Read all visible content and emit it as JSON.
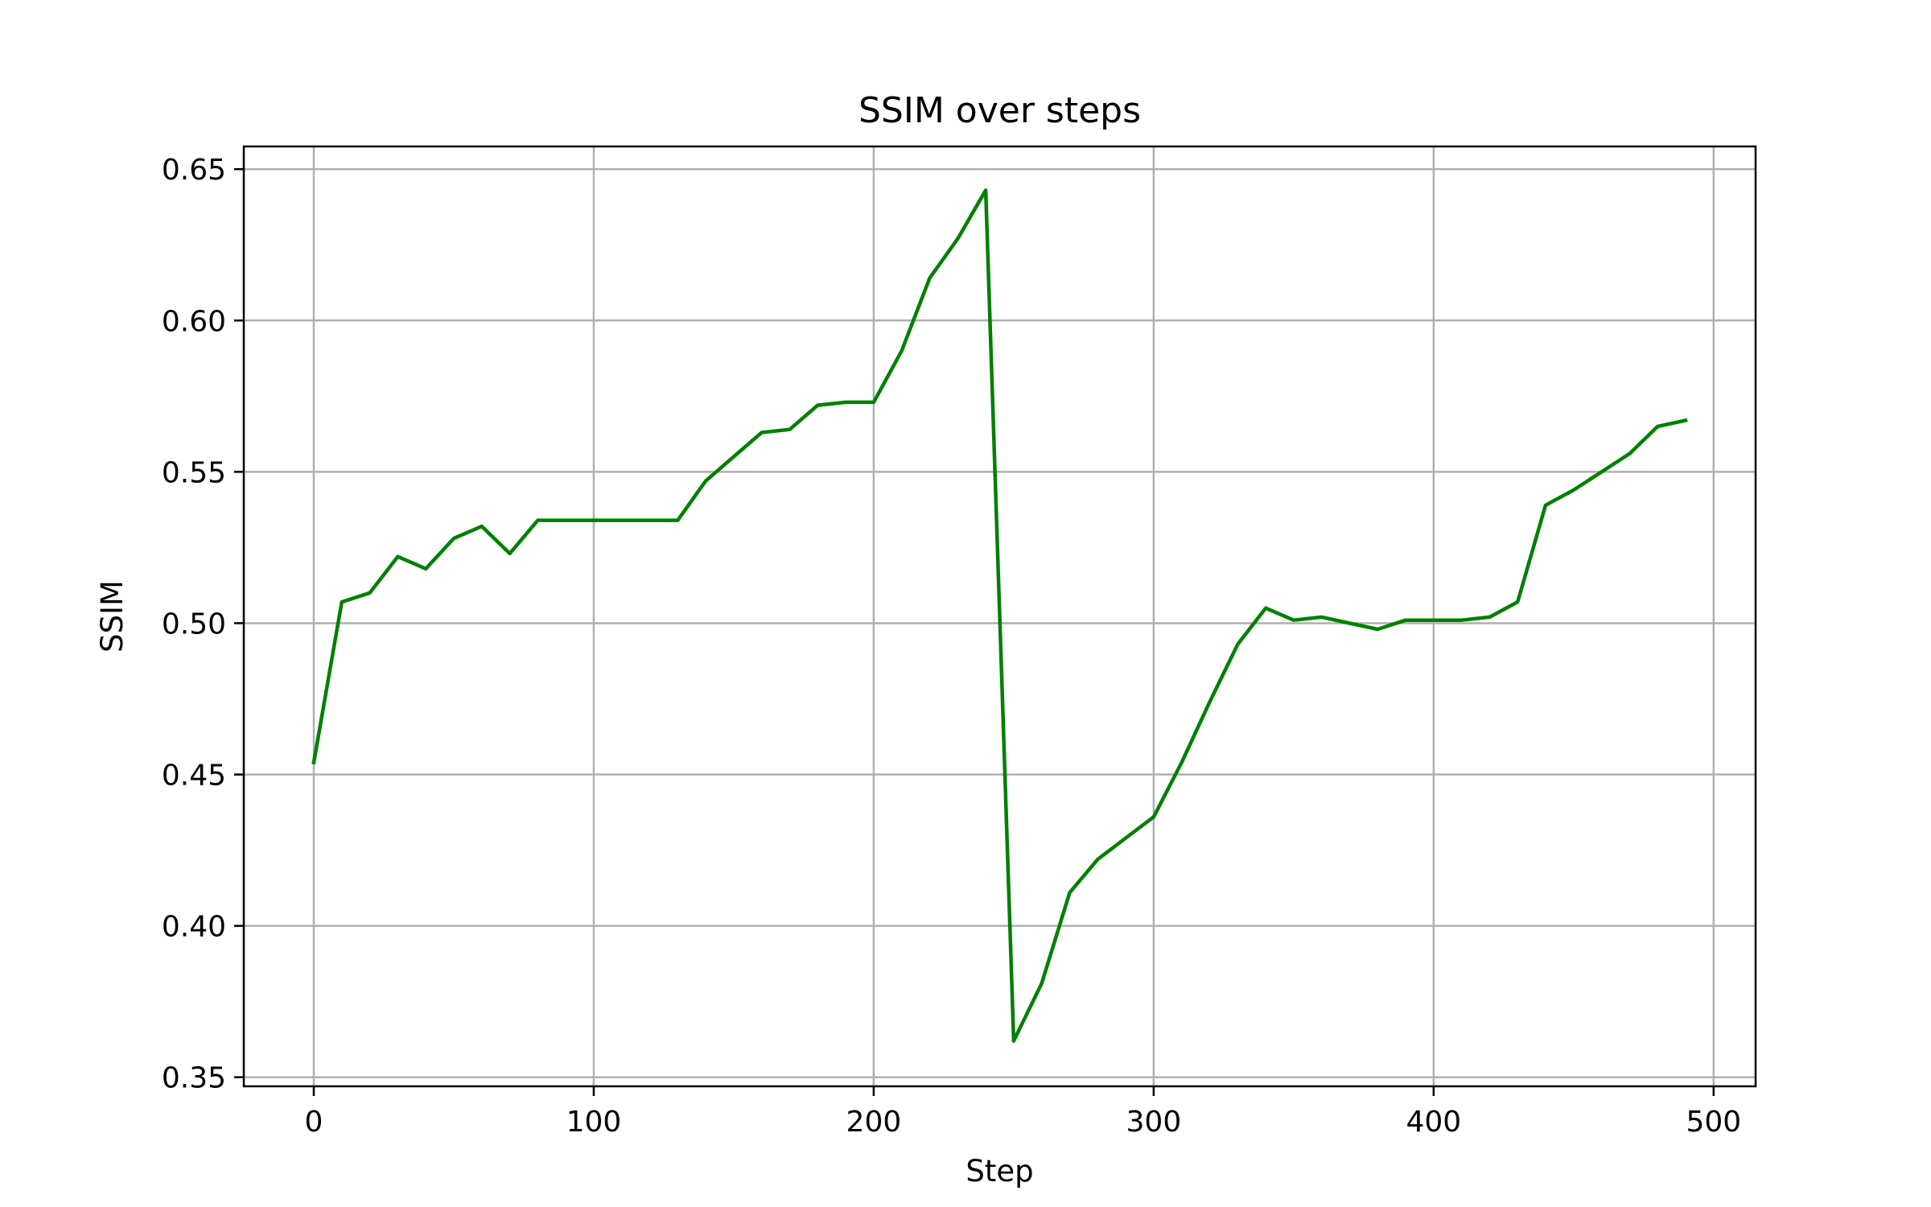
{
  "chart_data": {
    "type": "line",
    "title": "SSIM over steps",
    "xlabel": "Step",
    "ylabel": "SSIM",
    "xlim": [
      -25,
      515
    ],
    "ylim": [
      0.347,
      0.6575
    ],
    "xticks": [
      0,
      100,
      200,
      300,
      400,
      500
    ],
    "yticks": [
      0.35,
      0.4,
      0.45,
      0.5,
      0.55,
      0.6,
      0.65
    ],
    "grid": true,
    "line_color": "#008000",
    "grid_color": "#b0b0b0",
    "series": [
      {
        "x": [
          0,
          10,
          20,
          30,
          40,
          50,
          60,
          70,
          80,
          90,
          100,
          110,
          120,
          130,
          140,
          150,
          160,
          170,
          180,
          190,
          200,
          210,
          220,
          230,
          240,
          250,
          260,
          270,
          280,
          290,
          300,
          310,
          320,
          330,
          340,
          350,
          360,
          370,
          380,
          390,
          400,
          410,
          420,
          430,
          440,
          450,
          460,
          470,
          480,
          490
        ],
        "values": [
          0.454,
          0.507,
          0.51,
          0.522,
          0.518,
          0.528,
          0.532,
          0.523,
          0.534,
          0.534,
          0.534,
          0.534,
          0.534,
          0.534,
          0.547,
          0.555,
          0.563,
          0.564,
          0.572,
          0.573,
          0.573,
          0.59,
          0.614,
          0.627,
          0.643,
          0.362,
          0.381,
          0.411,
          0.422,
          0.429,
          0.436,
          0.454,
          0.474,
          0.493,
          0.505,
          0.501,
          0.502,
          0.5,
          0.498,
          0.501,
          0.501,
          0.501,
          0.502,
          0.507,
          0.539,
          0.544,
          0.55,
          0.556,
          0.565,
          0.567
        ]
      }
    ]
  }
}
